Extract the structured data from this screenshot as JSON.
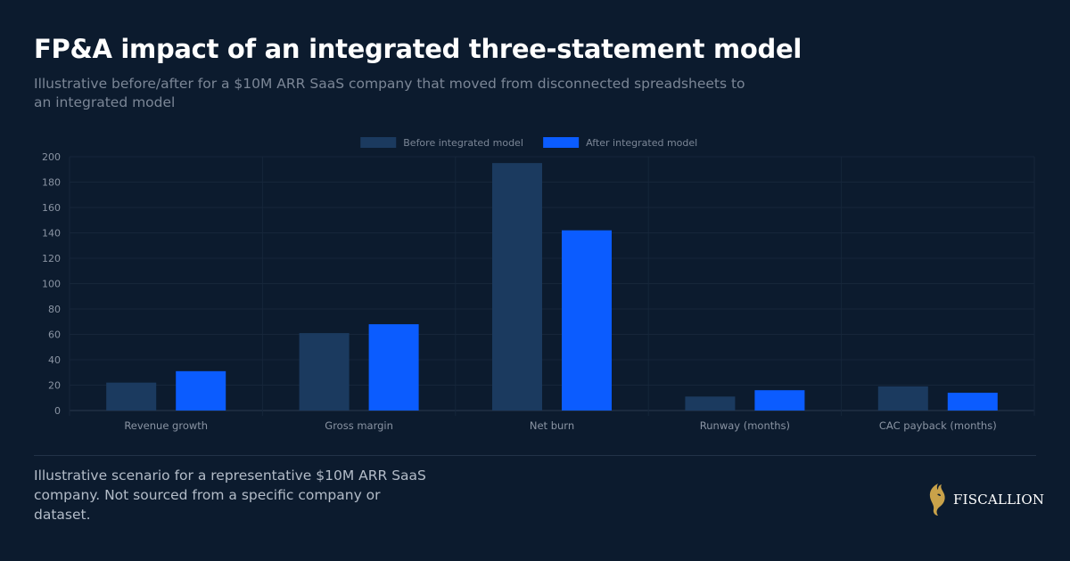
{
  "header": {
    "title": "FP&A impact of an integrated three-statement model",
    "subtitle": "Illustrative before/after for a $10M ARR SaaS company that moved from disconnected spreadsheets to an integrated model"
  },
  "footer": {
    "note": "Illustrative scenario for a representative $10M ARR SaaS company. Not sourced from a specific company or dataset.",
    "brand_name": "FISCALLION",
    "brand_icon": "lion-head-icon",
    "brand_color": "#c9a24a"
  },
  "chart_data": {
    "type": "bar",
    "categories": [
      "Revenue growth",
      "Gross margin",
      "Net burn",
      "Runway (months)",
      "CAC payback (months)"
    ],
    "series": [
      {
        "name": "Before integrated model",
        "color": "#1b3a5f",
        "values": [
          22,
          61,
          195,
          11,
          19
        ]
      },
      {
        "name": "After integrated model",
        "color": "#0b5cff",
        "values": [
          31,
          68,
          142,
          16,
          14
        ]
      }
    ],
    "yticks": [
      0,
      20,
      40,
      60,
      80,
      100,
      120,
      140,
      160,
      180,
      200
    ],
    "ylim": [
      0,
      200
    ],
    "grid": true,
    "legend": "top-center",
    "xlabel": "",
    "ylabel": ""
  }
}
